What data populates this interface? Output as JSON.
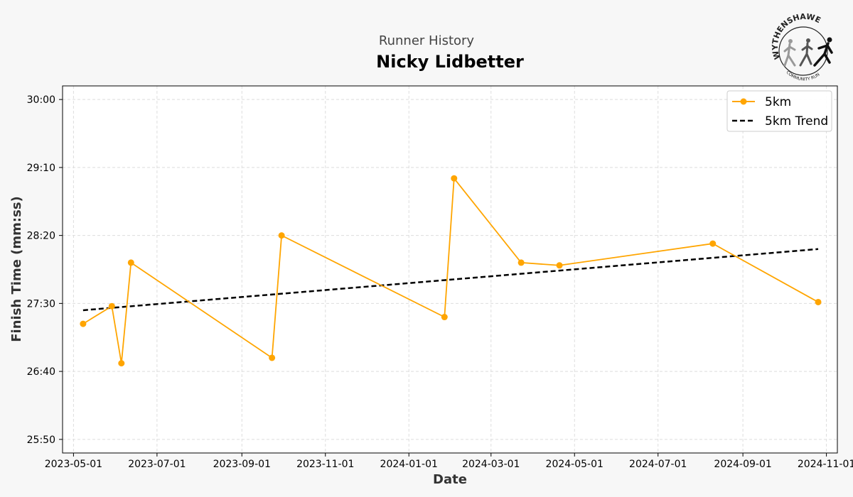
{
  "header": {
    "supertitle": "Runner History",
    "title": "Nicky Lidbetter"
  },
  "logo": {
    "top_text": "WYTHENSHAWE",
    "bottom_text": "COMMUNITY RUN",
    "icon": "runners-logo-icon"
  },
  "colors": {
    "series": "#FFA500",
    "trend": "#000000",
    "background": "#f7f7f7",
    "plot_background": "#ffffff",
    "grid": "#dddddd"
  },
  "chart_data": {
    "type": "line",
    "title": "Nicky Lidbetter",
    "subtitle": "Runner History",
    "xlabel": "Date",
    "ylabel": "Finish Time (mm:ss)",
    "x_ticks": [
      "2023-05-01",
      "2023-07-01",
      "2023-09-01",
      "2023-11-01",
      "2024-01-01",
      "2024-03-01",
      "2024-05-01",
      "2024-07-01",
      "2024-09-01",
      "2024-11-01"
    ],
    "y_ticks": [
      "25:50",
      "26:40",
      "27:30",
      "28:20",
      "29:10",
      "30:00"
    ],
    "ylim": [
      "25:40",
      "30:10"
    ],
    "xlim": [
      "2023-04-23",
      "2024-11-09"
    ],
    "grid": true,
    "legend_position": "top-right",
    "series": [
      {
        "name": "5km",
        "color": "#FFA500",
        "marker": "circle",
        "points": [
          {
            "x": "2023-05-08",
            "y": "27:15"
          },
          {
            "x": "2023-05-29",
            "y": "27:28"
          },
          {
            "x": "2023-06-05",
            "y": "26:46"
          },
          {
            "x": "2023-06-12",
            "y": "28:00"
          },
          {
            "x": "2023-09-23",
            "y": "26:50"
          },
          {
            "x": "2023-09-30",
            "y": "28:20"
          },
          {
            "x": "2024-01-27",
            "y": "27:20"
          },
          {
            "x": "2024-02-03",
            "y": "29:02"
          },
          {
            "x": "2024-03-23",
            "y": "28:00"
          },
          {
            "x": "2024-04-20",
            "y": "27:58"
          },
          {
            "x": "2024-08-10",
            "y": "28:14"
          },
          {
            "x": "2024-10-26",
            "y": "27:31"
          }
        ]
      },
      {
        "name": "5km Trend",
        "color": "#000000",
        "style": "dashed",
        "points": [
          {
            "x": "2023-05-08",
            "y": "27:25"
          },
          {
            "x": "2024-10-26",
            "y": "28:10"
          }
        ]
      }
    ]
  }
}
